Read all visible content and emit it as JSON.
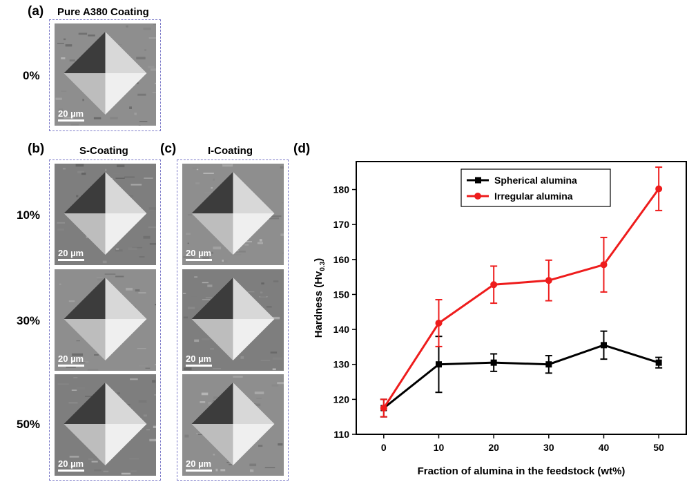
{
  "panels": {
    "a": {
      "label": "(a)",
      "title": "Pure A380 Coating",
      "row_labels": [
        "0%"
      ]
    },
    "b": {
      "label": "(b)",
      "title": "S-Coating"
    },
    "c": {
      "label": "(c)",
      "title": "I-Coating"
    },
    "d": {
      "label": "(d)"
    },
    "row_labels": [
      "10%",
      "30%",
      "50%"
    ],
    "scale_text": "20 µm"
  },
  "chart_data": {
    "type": "line",
    "xlabel": "Fraction of alumina in the feedstock (wt%)",
    "ylabel": "Hardness (Hv",
    "ylabel_sub": "0.3",
    "ylabel_close": ")",
    "xlim": [
      -5,
      55
    ],
    "ylim": [
      110,
      188
    ],
    "x_ticks": [
      0,
      10,
      20,
      30,
      40,
      50
    ],
    "y_ticks": [
      110,
      120,
      130,
      140,
      150,
      160,
      170,
      180
    ],
    "legend_position": "top-center",
    "series": [
      {
        "name": "Spherical alumina",
        "color": "#000000",
        "marker": "square",
        "x": [
          0,
          10,
          20,
          30,
          40,
          50
        ],
        "y": [
          117.5,
          130,
          130.5,
          130,
          135.5,
          130.5
        ],
        "err": [
          2.5,
          8,
          2.5,
          2.5,
          4,
          1.5
        ]
      },
      {
        "name": "Irregular alumina",
        "color": "#ee1c1c",
        "marker": "circle",
        "x": [
          0,
          10,
          20,
          30,
          40,
          50
        ],
        "y": [
          117.5,
          141.8,
          152.8,
          154,
          158.5,
          180.2
        ],
        "err": [
          2.5,
          6.7,
          5.3,
          5.8,
          7.8,
          6.2
        ]
      }
    ]
  }
}
